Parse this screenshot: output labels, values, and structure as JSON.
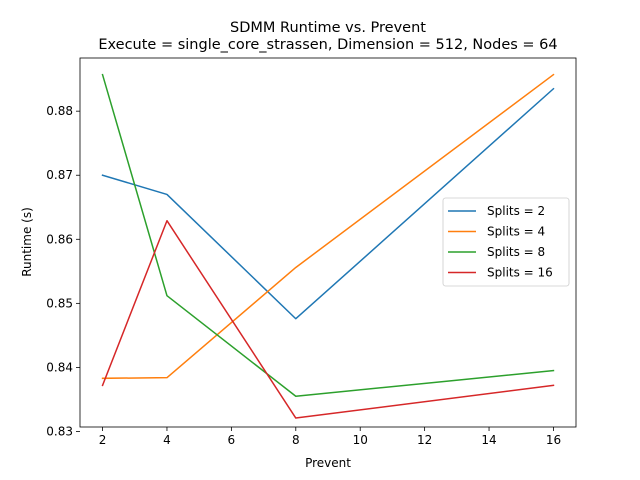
{
  "chart_data": {
    "type": "line",
    "title": "SDMM Runtime vs. Prevent",
    "subtitle": "Execute = single_core_strassen, Dimension = 512, Nodes = 64",
    "xlabel": "Prevent",
    "ylabel": "Runtime (s)",
    "x": [
      2,
      4,
      8,
      16
    ],
    "xlim": [
      1.3,
      16.7
    ],
    "ylim": [
      0.8307,
      0.8883
    ],
    "xticks": [
      2,
      4,
      6,
      8,
      10,
      12,
      14,
      16
    ],
    "yticks": [
      0.83,
      0.84,
      0.85,
      0.86,
      0.87,
      0.88
    ],
    "ytick_labels": [
      "0.83",
      "0.84",
      "0.85",
      "0.86",
      "0.87",
      "0.88"
    ],
    "grid": false,
    "legend_position": "center-right",
    "series": [
      {
        "name": "Splits = 2",
        "color": "#1f77b4",
        "values": [
          0.87,
          0.867,
          0.8476,
          0.8835
        ]
      },
      {
        "name": "Splits = 4",
        "color": "#ff7f0e",
        "values": [
          0.8383,
          0.8384,
          0.8556,
          0.8857
        ]
      },
      {
        "name": "Splits = 8",
        "color": "#2ca02c",
        "values": [
          0.8857,
          0.8512,
          0.8355,
          0.8395
        ]
      },
      {
        "name": "Splits = 16",
        "color": "#d62728",
        "values": [
          0.8372,
          0.8629,
          0.8321,
          0.8372
        ]
      }
    ]
  }
}
